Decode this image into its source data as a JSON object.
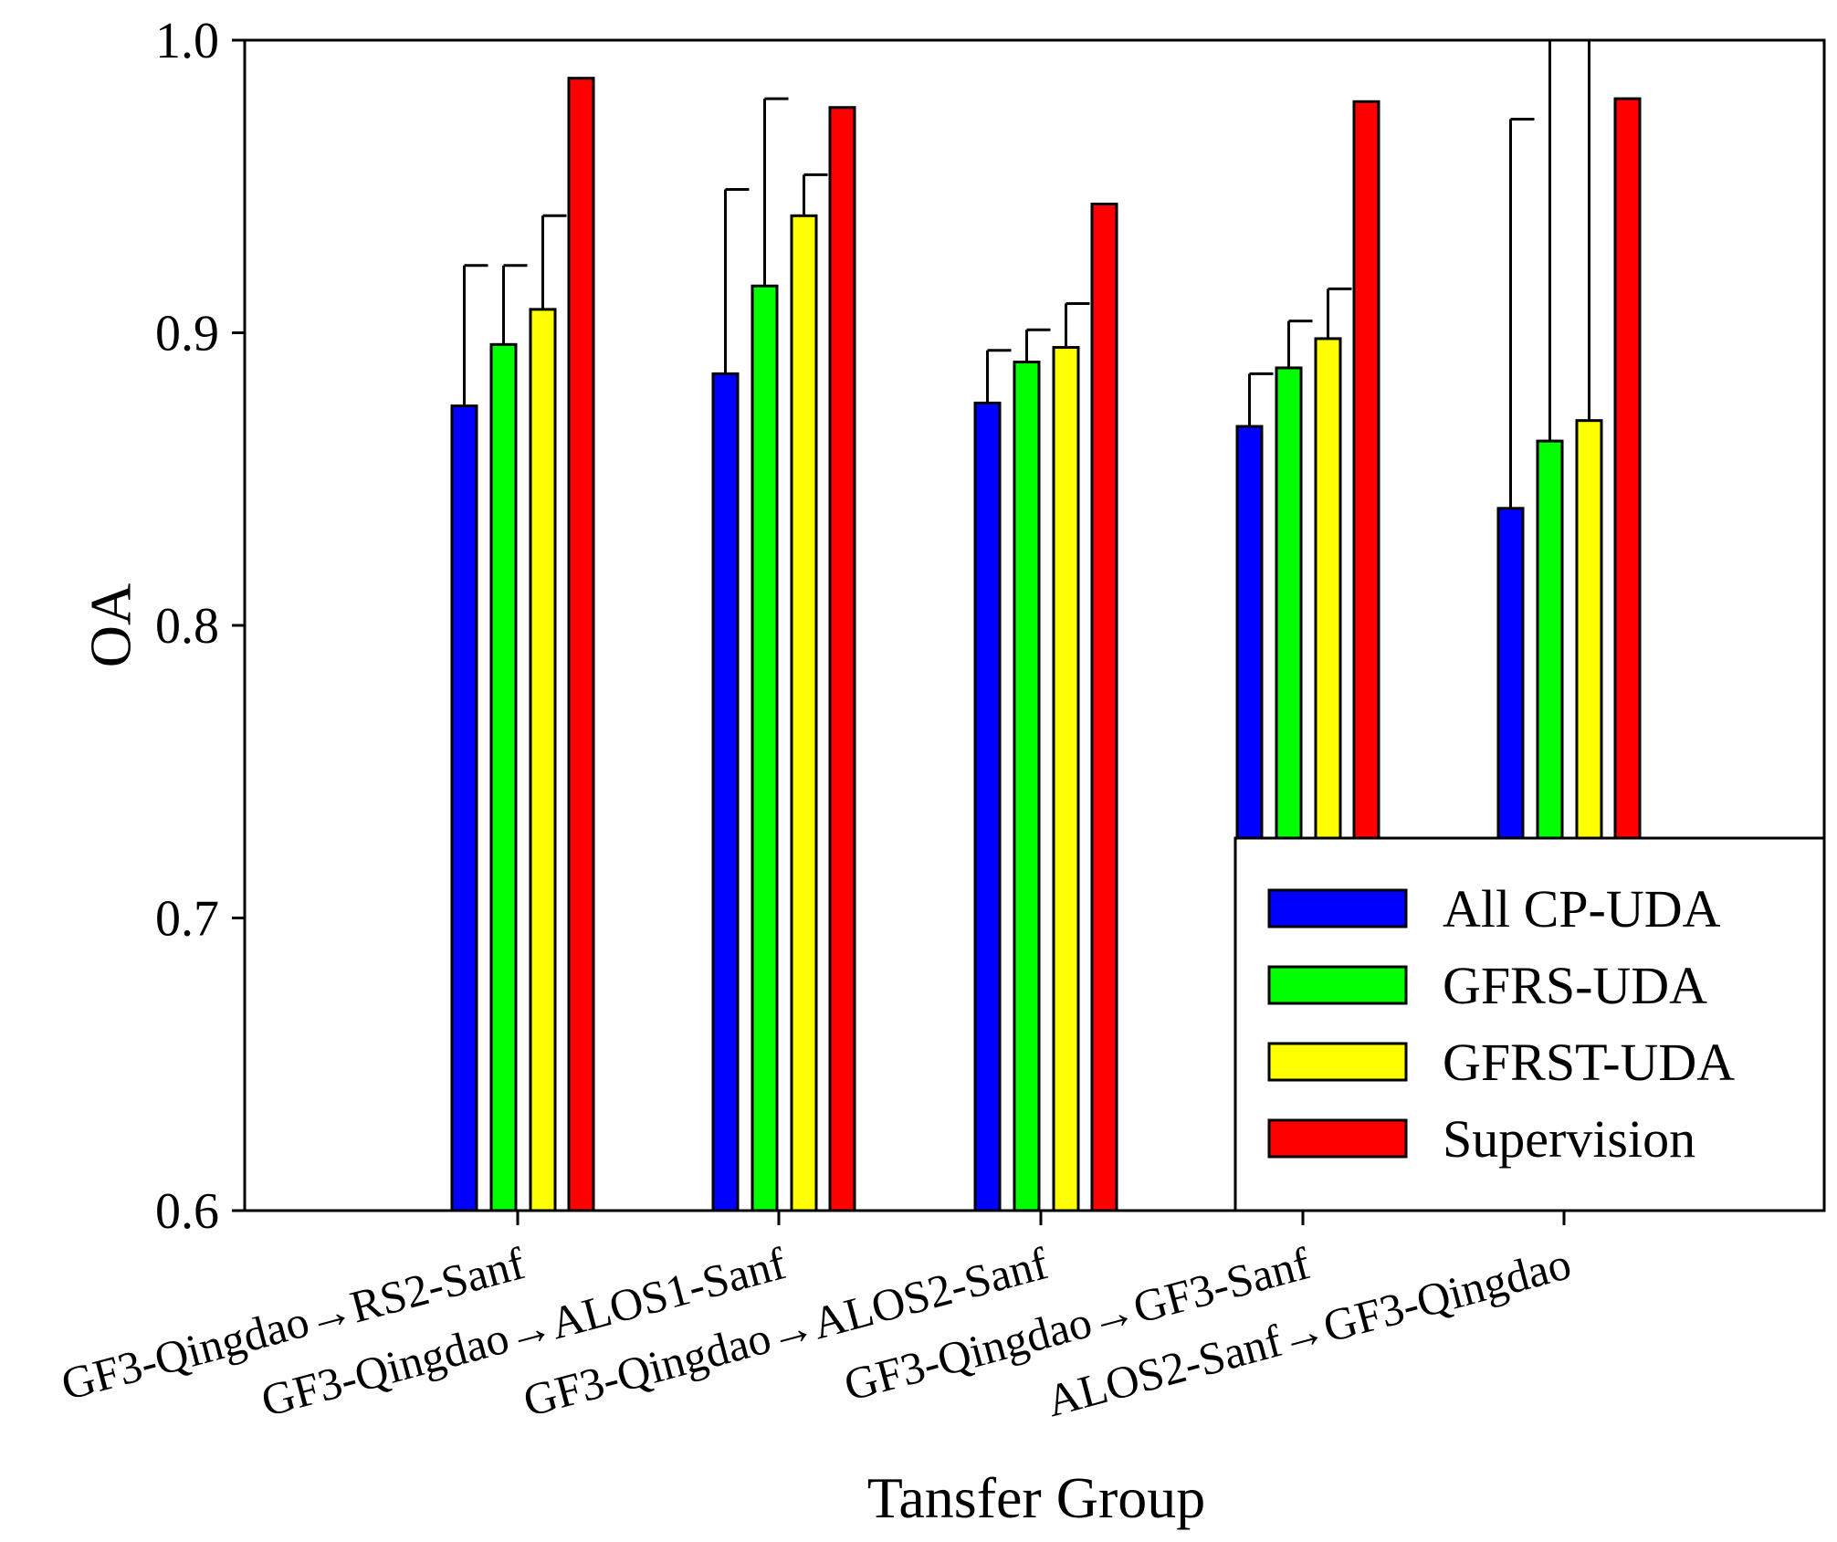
{
  "chart_data": {
    "type": "bar",
    "title": "",
    "xlabel": "Tansfer Group",
    "ylabel": "OA",
    "ylim": [
      0.6,
      1.0
    ],
    "yticks": [
      "0.6",
      "0.7",
      "0.8",
      "0.9",
      "1.0"
    ],
    "grid": false,
    "legend_position": "bottom-right",
    "categories": [
      "GF3-Qingdao→RS2-Sanf",
      "GF3-Qingdao→ALOS1-Sanf",
      "GF3-Qingdao→ALOS2-Sanf",
      "GF3-Qingdao→GF3-Sanf",
      "ALOS2-Sanf→GF3-Qingdao"
    ],
    "series": [
      {
        "name": "All CP-UDA",
        "color": "#0000ff",
        "values": [
          0.875,
          0.886,
          0.876,
          0.868,
          0.84
        ],
        "errors": [
          0.048,
          0.063,
          0.018,
          0.018,
          0.133
        ]
      },
      {
        "name": "GFRS-UDA",
        "color": "#00ff00",
        "values": [
          0.896,
          0.916,
          0.89,
          0.888,
          0.863
        ],
        "errors": [
          0.027,
          0.064,
          0.011,
          0.016,
          0.16
        ]
      },
      {
        "name": "GFRST-UDA",
        "color": "#ffff00",
        "values": [
          0.908,
          0.94,
          0.895,
          0.898,
          0.87
        ],
        "errors": [
          0.032,
          0.014,
          0.015,
          0.017,
          0.16
        ]
      },
      {
        "name": "Supervision",
        "color": "#ff0000",
        "values": [
          0.987,
          0.977,
          0.944,
          0.979,
          0.98
        ],
        "errors": [
          0,
          0,
          0,
          0,
          0
        ]
      }
    ]
  }
}
